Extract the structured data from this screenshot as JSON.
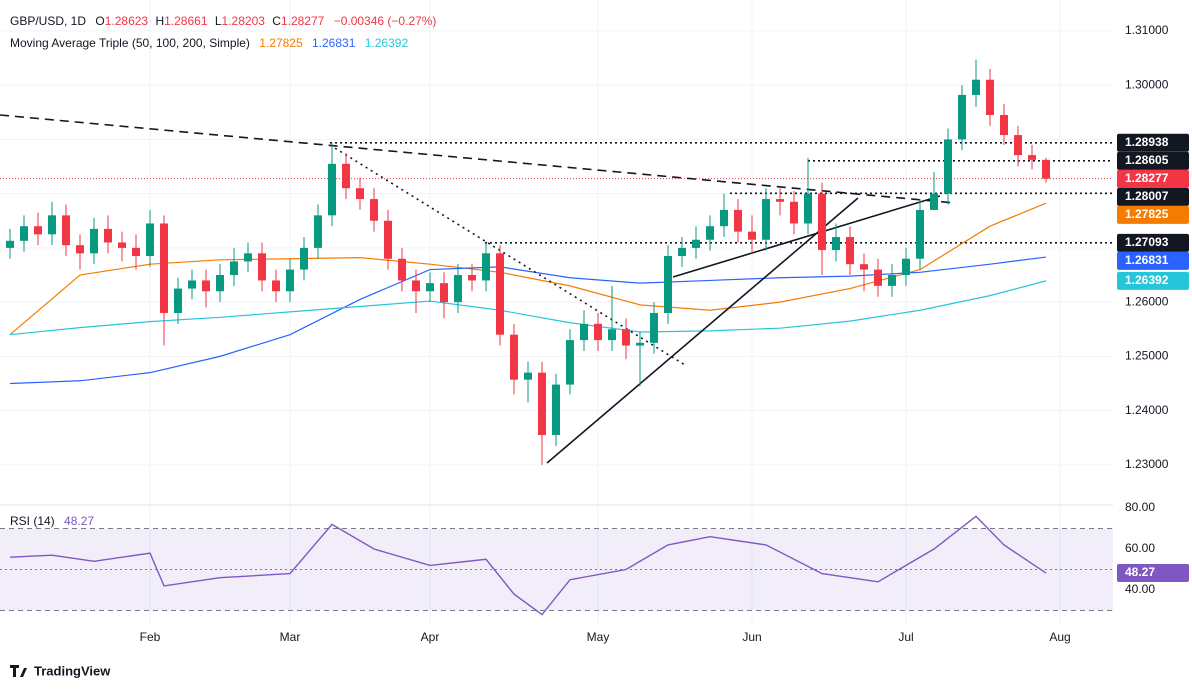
{
  "chart_data": {
    "type": "candlestick",
    "title": "GBP/USD, 1D",
    "header": {
      "o": "O",
      "h": "H",
      "l": "L",
      "c": "C",
      "change": "−0.00346 (−0.27%)"
    },
    "categories": [
      null,
      null,
      null,
      null,
      null,
      null,
      null,
      null,
      null,
      null,
      "Feb",
      null,
      null,
      null,
      null,
      null,
      null,
      null,
      null,
      null,
      "Mar",
      null,
      null,
      null,
      null,
      null,
      null,
      null,
      null,
      null,
      "Apr",
      null,
      null,
      null,
      null,
      null,
      null,
      null,
      null,
      null,
      null,
      null,
      "May",
      null,
      null,
      null,
      null,
      null,
      null,
      null,
      null,
      null,
      null,
      "Jun",
      null,
      null,
      null,
      null,
      null,
      null,
      null,
      null,
      null,
      null,
      "Jul",
      null,
      null,
      null,
      null,
      null,
      null,
      null,
      null,
      null,
      null,
      "Aug"
    ],
    "open": [
      1.27,
      1.2713,
      1.274,
      1.2725,
      1.276,
      1.2705,
      1.269,
      1.2735,
      1.271,
      1.27,
      1.2685,
      1.2745,
      1.258,
      1.2625,
      1.264,
      1.262,
      1.265,
      1.2675,
      1.269,
      1.264,
      1.262,
      1.266,
      1.27,
      1.276,
      1.2855,
      1.281,
      1.279,
      1.275,
      1.268,
      1.264,
      1.262,
      1.2635,
      1.26,
      1.265,
      1.264,
      1.269,
      1.254,
      1.2457,
      1.247,
      1.2355,
      1.2448,
      1.253,
      1.256,
      1.253,
      1.255,
      1.252,
      1.2525,
      1.258,
      1.2685,
      1.27,
      1.2715,
      1.274,
      1.277,
      1.273,
      1.2715,
      1.279,
      1.2785,
      1.2745,
      1.28,
      1.2696,
      1.272,
      1.267,
      1.266,
      1.263,
      1.265,
      1.268,
      1.277,
      1.28,
      1.29,
      1.2982,
      1.301,
      1.2945,
      1.2908,
      1.2871,
      1.28623,
      null
    ],
    "high": [
      1.2735,
      1.276,
      1.2765,
      1.2785,
      1.278,
      1.2725,
      1.2755,
      1.276,
      1.273,
      1.2725,
      1.277,
      1.276,
      1.2645,
      1.266,
      1.266,
      1.267,
      1.27,
      1.271,
      1.271,
      1.266,
      1.268,
      1.272,
      1.278,
      1.2893,
      1.2875,
      1.283,
      1.281,
      1.277,
      1.27,
      1.266,
      1.2655,
      1.2655,
      1.267,
      1.267,
      1.2709,
      1.2705,
      1.256,
      1.249,
      1.249,
      1.2468,
      1.255,
      1.2585,
      1.258,
      1.263,
      1.257,
      1.2545,
      1.26,
      1.2705,
      1.272,
      1.274,
      1.276,
      1.28,
      1.279,
      1.276,
      1.281,
      1.281,
      1.2805,
      1.2866,
      1.282,
      1.2745,
      1.274,
      1.269,
      1.268,
      1.267,
      1.27,
      1.279,
      1.284,
      1.292,
      1.3,
      1.3047,
      1.303,
      1.2965,
      1.2925,
      1.289,
      1.28661,
      null
    ],
    "low": [
      1.268,
      1.2693,
      1.2705,
      1.2705,
      1.2685,
      1.266,
      1.267,
      1.269,
      1.2675,
      1.266,
      1.2665,
      1.252,
      1.256,
      1.2605,
      1.259,
      1.26,
      1.263,
      1.2655,
      1.262,
      1.26,
      1.26,
      1.264,
      1.268,
      1.274,
      1.279,
      1.277,
      1.273,
      1.266,
      1.262,
      1.258,
      1.26,
      1.257,
      1.258,
      1.262,
      1.262,
      1.252,
      1.243,
      1.2415,
      1.23,
      1.2335,
      1.243,
      1.251,
      1.251,
      1.251,
      1.2495,
      1.2445,
      1.2505,
      1.256,
      1.2665,
      1.268,
      1.2695,
      1.272,
      1.271,
      1.269,
      1.2695,
      1.276,
      1.2725,
      1.2725,
      1.265,
      1.2675,
      1.265,
      1.262,
      1.261,
      1.261,
      1.263,
      1.266,
      1.277,
      1.278,
      1.288,
      1.296,
      1.2925,
      1.289,
      1.285,
      1.2845,
      1.28203,
      null
    ],
    "close": [
      1.2713,
      1.274,
      1.2725,
      1.276,
      1.2705,
      1.269,
      1.2735,
      1.271,
      1.27,
      1.2685,
      1.2745,
      1.258,
      1.2625,
      1.264,
      1.262,
      1.265,
      1.2675,
      1.269,
      1.264,
      1.262,
      1.266,
      1.27,
      1.276,
      1.2855,
      1.281,
      1.279,
      1.275,
      1.268,
      1.264,
      1.262,
      1.2635,
      1.26,
      1.265,
      1.264,
      1.269,
      1.254,
      1.2457,
      1.247,
      1.2355,
      1.2448,
      1.253,
      1.256,
      1.253,
      1.255,
      1.252,
      1.2525,
      1.258,
      1.2685,
      1.27,
      1.2715,
      1.274,
      1.277,
      1.273,
      1.2715,
      1.279,
      1.2785,
      1.2745,
      1.28,
      1.2696,
      1.272,
      1.267,
      1.266,
      1.263,
      1.265,
      1.268,
      1.277,
      1.28,
      1.29,
      1.2982,
      1.301,
      1.2945,
      1.2908,
      1.2871,
      1.28623,
      1.28277,
      null
    ],
    "up_color": "#089981",
    "down_color": "#f23645",
    "ylim": [
      1.2226,
      1.3157
    ],
    "yticks": [
      {
        "value": 1.23,
        "label": "1.23000"
      },
      {
        "value": 1.24,
        "label": "1.24000"
      },
      {
        "value": 1.25,
        "label": "1.25000"
      },
      {
        "value": 1.26,
        "label": "1.26000"
      },
      {
        "value": 1.27,
        "label": "1.27000"
      },
      {
        "value": 1.28,
        "label": "1.28000"
      },
      {
        "value": 1.29,
        "label": "1.29000"
      },
      {
        "value": 1.3,
        "label": "1.30000"
      },
      {
        "value": 1.31,
        "label": "1.31000"
      }
    ],
    "grid": true,
    "levels": [
      1.28938,
      1.28605,
      1.28007,
      1.27093
    ],
    "level_color": "#131722",
    "overlays": {
      "title": "Moving Average Triple (50, 100, 200, Simple)",
      "series": [
        {
          "color": "#f57c00",
          "x": [
            0,
            5,
            10,
            15,
            20,
            25,
            30,
            35,
            40,
            45,
            50,
            55,
            60,
            65,
            70,
            74
          ],
          "values": [
            1.254,
            1.265,
            1.267,
            1.2678,
            1.268,
            1.2682,
            1.267,
            1.2655,
            1.263,
            1.2595,
            1.2585,
            1.26,
            1.2625,
            1.266,
            1.274,
            1.27825
          ]
        },
        {
          "color": "#2962ff",
          "x": [
            0,
            5,
            10,
            15,
            20,
            25,
            30,
            35,
            40,
            45,
            50,
            55,
            60,
            65,
            70,
            74
          ],
          "values": [
            1.245,
            1.2455,
            1.247,
            1.25,
            1.254,
            1.2605,
            1.266,
            1.2665,
            1.2645,
            1.2635,
            1.264,
            1.2645,
            1.2648,
            1.2655,
            1.267,
            1.26831
          ]
        },
        {
          "color": "#26c6da",
          "x": [
            0,
            5,
            10,
            15,
            20,
            25,
            30,
            35,
            40,
            45,
            50,
            55,
            60,
            65,
            70,
            74
          ],
          "values": [
            1.254,
            1.2553,
            1.2564,
            1.2572,
            1.2582,
            1.2592,
            1.2602,
            1.2585,
            1.2562,
            1.2545,
            1.2547,
            1.2552,
            1.2565,
            1.2585,
            1.2612,
            1.26392
          ]
        }
      ]
    },
    "rsi": {
      "type": "line",
      "title": "RSI (14)",
      "color": "#7e57c2",
      "x": [
        0,
        3,
        6,
        10,
        11,
        15,
        20,
        23,
        26,
        30,
        34,
        36,
        38,
        40,
        44,
        47,
        50,
        54,
        58,
        62,
        66,
        69,
        71,
        74
      ],
      "values": [
        56,
        57,
        54,
        58,
        42,
        46,
        48,
        72,
        60,
        52,
        55,
        38,
        28,
        45,
        50,
        62,
        66,
        62,
        48,
        44,
        60,
        76,
        62,
        48.27
      ],
      "ylim": [
        22.9,
        81.5
      ],
      "yticks": [
        {
          "value": 40,
          "label": "40.00"
        },
        {
          "value": 60,
          "label": "60.00"
        },
        {
          "value": 80,
          "label": "80.00"
        }
      ],
      "levels": [
        70,
        50,
        30
      ]
    },
    "watermark": "TradingView"
  }
}
